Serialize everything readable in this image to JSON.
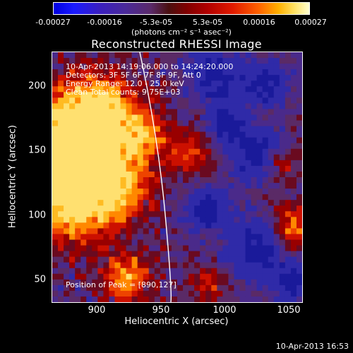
{
  "colorbar": {
    "labels": [
      "-0.00027",
      "-0.00016",
      "-5.3e-05",
      "5.3e-05",
      "0.00016",
      "0.00027"
    ],
    "units": "(photons cm⁻² s⁻¹ asec⁻²)"
  },
  "plot": {
    "title": "Reconstructed RHESSI Image",
    "info": [
      "10-Apr-2013 14:19:06.000 to 14:24:20.000",
      "Detectors: 3F 5F 6F 7F 8F 9F, Att 0",
      "Energy Range: 12.0 - 25.0 keV",
      "Clean     Total counts: 9.75E+03"
    ],
    "peak_text": "Position of Peak = [890,127]",
    "xlabel": "Heliocentric X (arcsec)",
    "ylabel": "Heliocentric Y (arcsec)",
    "xticks": [
      "900",
      "950",
      "1000",
      "1050"
    ],
    "yticks": [
      "200",
      "150",
      "100",
      "50"
    ],
    "xlim": [
      865,
      1060
    ],
    "ylim": [
      35,
      230
    ],
    "colors": {
      "background": "#000000",
      "frame": "#ffffff",
      "limb": "#ffffff",
      "neg": "#3a2aa0",
      "pos_hot": "#ffcc33"
    }
  },
  "timestamp": "10-Apr-2013 16:53"
}
